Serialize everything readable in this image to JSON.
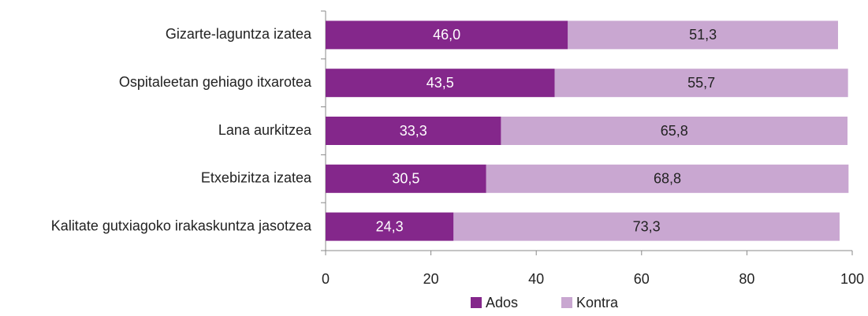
{
  "chart_data": {
    "type": "bar",
    "orientation": "horizontal",
    "stacked": true,
    "categories": [
      "Gizarte-laguntza izatea",
      "Ospitaleetan gehiago itxarotea",
      "Lana aurkitzea",
      "Etxebizitza izatea",
      "Kalitate gutxiagoko irakaskuntza jasotzea"
    ],
    "series": [
      {
        "name": "Ados",
        "color": "#84278b",
        "values": [
          46.0,
          43.5,
          33.3,
          30.5,
          24.3
        ],
        "value_labels": [
          "46,0",
          "43,5",
          "33,3",
          "30,5",
          "24,3"
        ]
      },
      {
        "name": "Kontra",
        "color": "#c9a7d1",
        "values": [
          51.3,
          55.7,
          65.8,
          68.8,
          73.3
        ],
        "value_labels": [
          "51,3",
          "55,7",
          "65,8",
          "68,8",
          "73,3"
        ]
      }
    ],
    "xlim": [
      0,
      100
    ],
    "xticks": [
      0,
      20,
      40,
      60,
      80,
      100
    ],
    "grid": false,
    "legend": "bottom"
  }
}
